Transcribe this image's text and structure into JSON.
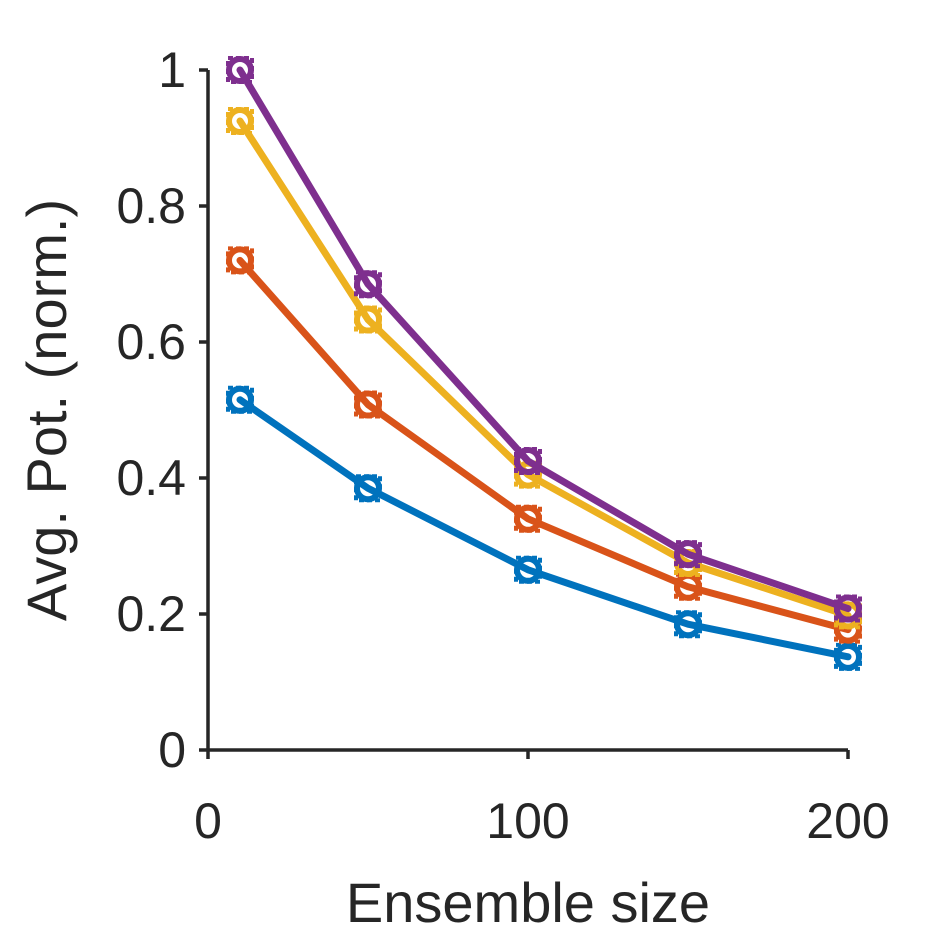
{
  "chart_data": {
    "type": "line",
    "title": "",
    "xlabel": "Ensemble size",
    "ylabel": "Avg. Pot. (norm.)",
    "x": [
      10,
      50,
      100,
      150,
      200
    ],
    "xlim": [
      0,
      200
    ],
    "ylim": [
      0,
      1
    ],
    "xticks": [
      0,
      100,
      200
    ],
    "xtick_labels": [
      "0",
      "100",
      "200"
    ],
    "yticks": [
      0,
      0.2,
      0.4,
      0.6,
      0.8,
      1
    ],
    "ytick_labels": [
      "0",
      "0.2",
      "0.4",
      "0.6",
      "0.8",
      "1"
    ],
    "grid": false,
    "legend": "none",
    "series": [
      {
        "color": "#0072BD",
        "marker": "circle",
        "values": [
          0.515,
          0.385,
          0.265,
          0.185,
          0.137
        ]
      },
      {
        "color": "#D95319",
        "marker": "circle",
        "values": [
          0.72,
          0.508,
          0.34,
          0.24,
          0.177
        ]
      },
      {
        "color": "#EDB120",
        "marker": "circle",
        "values": [
          0.925,
          0.633,
          0.405,
          0.275,
          0.198
        ]
      },
      {
        "color": "#7E2F8E",
        "marker": "circle",
        "values": [
          1.0,
          0.685,
          0.425,
          0.288,
          0.208
        ]
      }
    ]
  }
}
